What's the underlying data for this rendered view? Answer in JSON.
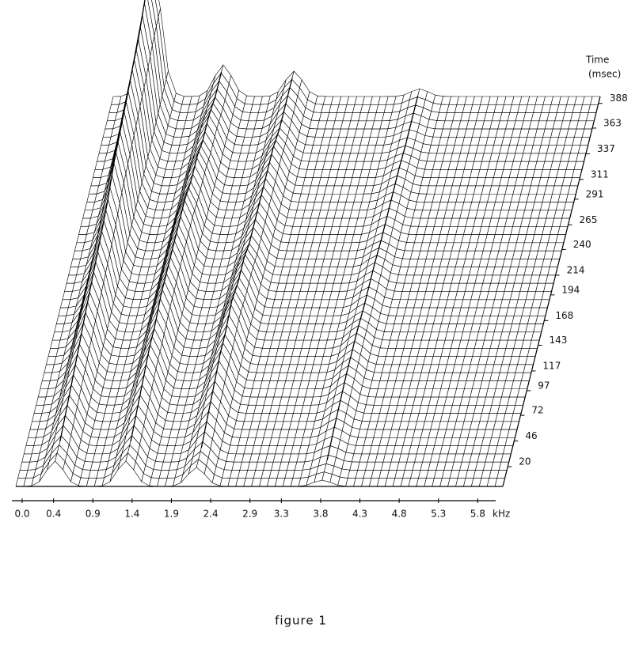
{
  "chart_data": {
    "type": "waterfall",
    "caption": "figure 1",
    "x_label": "kHz",
    "y_label_lines": [
      "Time",
      "(msec)"
    ],
    "xlim": [
      0,
      6.2
    ],
    "xticks": [
      {
        "value": 0,
        "label": "0.0"
      },
      0.4,
      0.9,
      1.4,
      1.9,
      2.4,
      2.9,
      3.3,
      3.8,
      4.3,
      4.8,
      5.3,
      5.8
    ],
    "ylim": [
      0,
      395
    ],
    "yticks": [
      20,
      46,
      72,
      97,
      117,
      143,
      168,
      194,
      214,
      240,
      265,
      291,
      311,
      337,
      363,
      388
    ],
    "color": "#000000",
    "ridges": [
      {
        "khz": 0.5,
        "values": [
          20,
          25,
          30,
          35,
          40,
          45,
          50,
          55,
          60,
          70,
          75,
          80,
          85,
          90,
          100,
          105
        ]
      },
      {
        "khz": 1.4,
        "values": [
          20,
          25,
          30,
          35,
          35,
          40,
          40,
          40,
          40,
          40,
          35,
          35,
          30,
          30,
          25,
          25
        ]
      },
      {
        "khz": 2.3,
        "values": [
          15,
          20,
          25,
          30,
          30,
          35,
          30,
          30,
          25,
          25,
          25,
          25,
          25,
          20,
          20,
          20
        ]
      },
      {
        "khz": 3.9,
        "values": [
          5,
          8,
          10,
          12,
          12,
          12,
          10,
          10,
          10,
          8,
          8,
          8,
          8,
          6,
          6,
          6
        ]
      }
    ]
  }
}
